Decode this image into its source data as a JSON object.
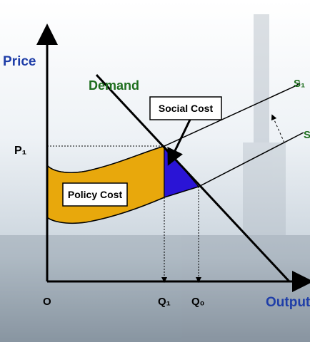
{
  "axes": {
    "y_label": "Price",
    "x_label": "Output",
    "origin": "O"
  },
  "levels": {
    "p1": "P₁",
    "q1": "Q₁",
    "q0": "Q₀"
  },
  "curves": {
    "demand": "Demand",
    "s1": "S₁",
    "s0": "S"
  },
  "areas": {
    "social_cost": "Social Cost",
    "policy_cost": "Policy Cost"
  }
}
